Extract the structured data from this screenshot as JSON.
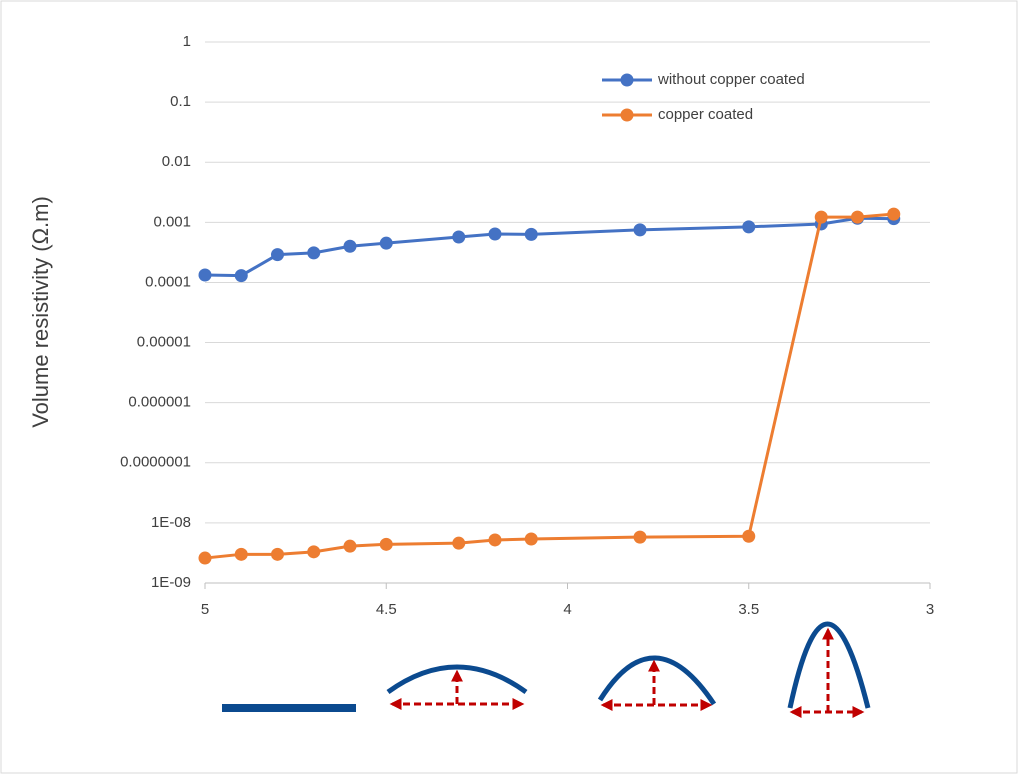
{
  "chart_data": {
    "type": "line",
    "y_label": "Volume  resistivity (Ω.m)",
    "x": [
      5,
      4.9,
      4.8,
      4.7,
      4.6,
      4.5,
      4.3,
      4.2,
      4.1,
      3.8,
      3.5,
      3.3,
      3.2,
      3.1
    ],
    "series": [
      {
        "name": "without copper coated",
        "color": "#4472c4",
        "values": [
          0.000133,
          0.00013,
          0.00029,
          0.00031,
          0.0004,
          0.00045,
          0.00057,
          0.00064,
          0.00063,
          0.00075,
          0.00084,
          0.00094,
          0.00117,
          0.00115
        ]
      },
      {
        "name": "copper coated",
        "color": "#ed7d31",
        "values": [
          2.6e-09,
          3e-09,
          3e-09,
          3.3e-09,
          4.1e-09,
          4.4e-09,
          4.6e-09,
          5.2e-09,
          5.4e-09,
          5.8e-09,
          6e-09,
          0.00122,
          0.00122,
          0.00137
        ]
      }
    ],
    "xlim": [
      5,
      3
    ],
    "xticks": [
      5,
      4.5,
      4,
      3.5,
      3
    ],
    "ylim": [
      1e-09,
      1
    ],
    "log_y": true,
    "yticks": [
      1,
      0.1,
      0.01,
      0.001,
      0.0001,
      1e-05,
      1e-06,
      {
        "value": 1e-07,
        "label": "0.0000001"
      },
      {
        "value": 1e-08,
        "label": "1E-08"
      },
      {
        "value": 1e-09,
        "label": "1E-09"
      }
    ],
    "grid": true,
    "legend": "top-right"
  }
}
